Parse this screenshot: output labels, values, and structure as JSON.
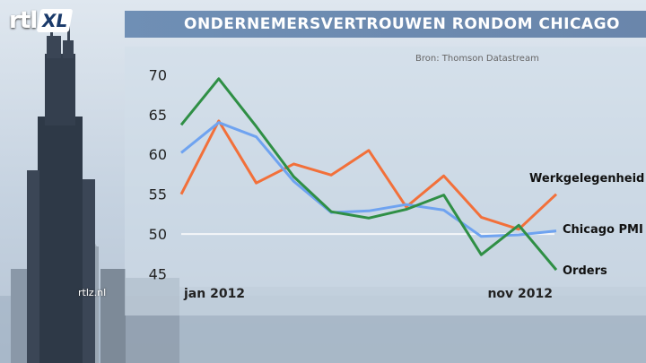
{
  "header": {
    "logo_text": "rtl",
    "logo_badge": "XL",
    "title": "ONDERNEMERSVERTROUWEN RONDOM CHICAGO"
  },
  "source": "Bron: Thomson Datastream",
  "watermark": "rtlz.nl",
  "colors": {
    "title_bar": "#6f8fb5",
    "werkgelegenheid": "#f2703a",
    "chicago_pmi": "#6fa3f0",
    "orders": "#2f8f45",
    "reference_line": "#f4f6f8"
  },
  "chart_data": {
    "type": "line",
    "x": [
      "jan 2012",
      "feb 2012",
      "mrt 2012",
      "apr 2012",
      "mei 2012",
      "jun 2012",
      "jul 2012",
      "aug 2012",
      "sep 2012",
      "okt 2012",
      "nov 2012"
    ],
    "x_tick_labels": [
      "jan 2012",
      "nov 2012"
    ],
    "y_ticks": [
      45,
      50,
      55,
      60,
      65,
      70
    ],
    "ylim": [
      44.5,
      71.5
    ],
    "reference_line": 50,
    "grid": false,
    "legend": "inline-right",
    "series": [
      {
        "name": "Werkgelegenheid",
        "color_key": "werkgelegenheid",
        "values": [
          55.0,
          64.2,
          56.4,
          58.8,
          57.4,
          60.5,
          53.4,
          57.3,
          52.1,
          50.6,
          55.0
        ]
      },
      {
        "name": "Chicago PMI",
        "color_key": "chicago_pmi",
        "values": [
          60.2,
          64.0,
          62.2,
          56.6,
          52.7,
          52.9,
          53.7,
          53.0,
          49.7,
          49.9,
          50.4
        ]
      },
      {
        "name": "Orders",
        "color_key": "orders",
        "values": [
          63.7,
          69.5,
          63.5,
          57.2,
          52.8,
          52.0,
          53.1,
          54.9,
          47.4,
          51.1,
          45.5
        ]
      }
    ]
  }
}
